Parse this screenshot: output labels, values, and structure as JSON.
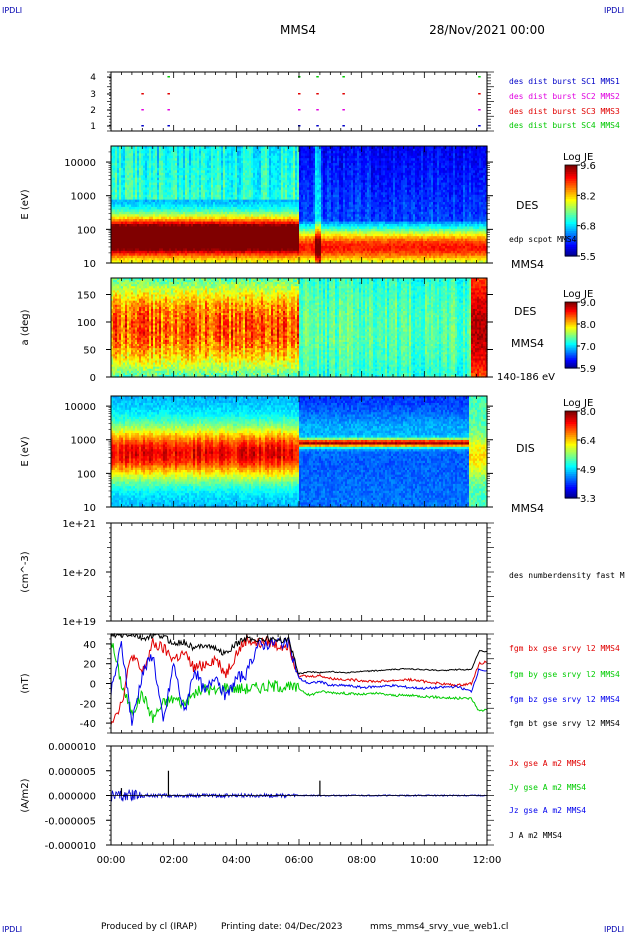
{
  "header": {
    "corner_tl": "IPDLI",
    "corner_tr": "IPDLI",
    "corner_bl": "IPDLI",
    "corner_br": "IPDLI",
    "spacecraft": "MMS4",
    "date": "28/Nov/2021 00:00"
  },
  "footer": {
    "produced_by": "Produced by cl (IRAP)",
    "printing_date": "Printing date: 04/Dec/2023",
    "file_name": "mms_mms4_srvy_vue_web1.cl"
  },
  "colors": {
    "mms1": "#0000c8",
    "mms2": "#e000e0",
    "mms3": "#e00000",
    "mms4": "#00c800",
    "bx": "#e00000",
    "by": "#00cc00",
    "bz": "#0000ee",
    "bt": "#000000"
  },
  "chart_data": [
    {
      "type": "scatter",
      "panel": "burst-availability",
      "ylabel": "",
      "yticks": [
        "1",
        "2",
        "3",
        "4"
      ],
      "xlim": [
        "00:00",
        "12:00"
      ],
      "series": [
        {
          "name": "des dist burst SC1 MMS1",
          "y": 1,
          "x": [
            "01:00",
            "01:50",
            "06:00",
            "06:35",
            "07:25",
            "11:45"
          ]
        },
        {
          "name": "des dist burst SC2 MMS2",
          "y": 2,
          "x": [
            "01:00",
            "01:50",
            "06:00",
            "06:35",
            "07:25",
            "11:45"
          ]
        },
        {
          "name": "des dist burst SC3 MMS3",
          "y": 3,
          "x": [
            "01:00",
            "01:50",
            "06:00",
            "06:35",
            "07:25",
            "11:45"
          ]
        },
        {
          "name": "des dist burst SC4 MMS4",
          "y": 4,
          "x": [
            "01:50",
            "06:00",
            "06:35",
            "07:25",
            "11:45"
          ]
        }
      ]
    },
    {
      "type": "heatmap",
      "panel": "des-energy",
      "ylabel": "E (eV)",
      "yscale": "log",
      "ylim": [
        10,
        30000
      ],
      "yticks": [
        "10",
        "100",
        "1000",
        "10000"
      ],
      "right_labels": [
        "DES",
        "edp scpot MMS4",
        "MMS4"
      ],
      "colorbar": {
        "title": "Log JE",
        "ticks": [
          "9.6",
          "8.2",
          "6.8",
          "5.5"
        ],
        "min": 5.5,
        "max": 9.6
      },
      "peak_energy_ev": [
        {
          "from": "00:00",
          "to": "06:00",
          "value": 60
        },
        {
          "from": "06:00",
          "to": "12:00",
          "value": 30
        }
      ]
    },
    {
      "type": "heatmap",
      "panel": "des-pitch-angle",
      "ylabel": "a (deg)",
      "ylim": [
        0,
        180
      ],
      "yticks": [
        "0",
        "50",
        "100",
        "150"
      ],
      "right_labels": [
        "DES",
        "MMS4",
        "140-186 eV"
      ],
      "colorbar": {
        "title": "Log JE",
        "ticks": [
          "9.0",
          "8.0",
          "7.0",
          "5.9"
        ],
        "min": 5.9,
        "max": 9.0
      }
    },
    {
      "type": "heatmap",
      "panel": "dis-energy",
      "ylabel": "E (eV)",
      "yscale": "log",
      "ylim": [
        10,
        20000
      ],
      "yticks": [
        "10",
        "100",
        "1000",
        "10000"
      ],
      "right_labels": [
        "DIS",
        "MMS4"
      ],
      "colorbar": {
        "title": "Log JE",
        "ticks": [
          "8.0",
          "6.4",
          "4.9",
          "3.3"
        ],
        "min": 3.3,
        "max": 8.0
      },
      "peak_energy_ev": [
        {
          "from": "00:00",
          "to": "06:00",
          "value": 400
        },
        {
          "from": "06:00",
          "to": "11:20",
          "value": 800
        }
      ]
    },
    {
      "type": "line",
      "panel": "density",
      "ylabel": "(cm^-3)",
      "yscale": "log",
      "yticks": [
        "1e+19",
        "1e+20",
        "1e+21"
      ],
      "series": [
        {
          "name": "des numberdensity fast M",
          "values": []
        }
      ]
    },
    {
      "type": "line",
      "panel": "magnetic-field",
      "ylabel": "(nT)",
      "ylim": [
        -50,
        50
      ],
      "yticks": [
        "-40",
        "-20",
        "0",
        "20",
        "40"
      ],
      "x": [
        "00:00",
        "00:20",
        "00:40",
        "01:00",
        "01:20",
        "01:40",
        "02:00",
        "02:20",
        "02:40",
        "03:00",
        "03:20",
        "03:40",
        "04:00",
        "04:20",
        "04:40",
        "05:00",
        "05:20",
        "05:40",
        "06:00",
        "06:20",
        "06:40",
        "07:00",
        "07:30",
        "08:00",
        "08:30",
        "09:00",
        "09:30",
        "10:00",
        "10:30",
        "11:00",
        "11:30",
        "11:45",
        "12:00"
      ],
      "series": [
        {
          "name": "fgm bx gse srvy l2 MMS4",
          "values": [
            -38,
            -20,
            30,
            10,
            40,
            35,
            25,
            30,
            15,
            20,
            25,
            10,
            30,
            45,
            40,
            42,
            38,
            40,
            8,
            7,
            8,
            5,
            4,
            3,
            2,
            3,
            4,
            2,
            0,
            -2,
            0,
            20,
            22
          ]
        },
        {
          "name": "fgm by gse srvy l2 MMS4",
          "values": [
            45,
            0,
            -30,
            -10,
            -35,
            -20,
            -15,
            -20,
            -10,
            -5,
            -8,
            -3,
            -5,
            -5,
            -4,
            -3,
            -2,
            -4,
            -5,
            -12,
            -8,
            -9,
            -10,
            -11,
            -10,
            -12,
            -12,
            -13,
            -14,
            -15,
            -15,
            -28,
            -26
          ]
        },
        {
          "name": "fgm bz gse srvy l2 MMS4",
          "values": [
            -10,
            40,
            -40,
            10,
            30,
            -40,
            20,
            -30,
            15,
            -10,
            10,
            -15,
            5,
            10,
            38,
            40,
            42,
            40,
            5,
            0,
            2,
            -2,
            -2,
            -4,
            -3,
            -2,
            -4,
            -5,
            -4,
            -3,
            -8,
            15,
            12
          ]
        },
        {
          "name": "fgm bt gse srvy l2 MMS4",
          "values": [
            48,
            48,
            50,
            45,
            48,
            48,
            40,
            42,
            35,
            40,
            35,
            30,
            40,
            46,
            44,
            45,
            44,
            44,
            10,
            12,
            11,
            12,
            11,
            12,
            13,
            14,
            15,
            14,
            13,
            14,
            14,
            33,
            32
          ]
        }
      ]
    },
    {
      "type": "line",
      "panel": "current-density",
      "ylabel": "(A/m2)",
      "ylim": [
        -1e-05,
        1e-05
      ],
      "yticks": [
        "-0.000010",
        "-0.000005",
        "0.000000",
        "0.000005",
        "0.000010"
      ],
      "series": [
        {
          "name": "Jx gse A m2 MMS4",
          "values": []
        },
        {
          "name": "Jy gse A m2 MMS4",
          "values": []
        },
        {
          "name": "Jz gse A m2 MMS4",
          "values": []
        },
        {
          "name": "J A m2 MMS4",
          "values": []
        }
      ],
      "spikes": [
        {
          "x": "00:20",
          "value": 1.5e-06
        },
        {
          "x": "01:50",
          "value": 5e-06
        },
        {
          "x": "06:40",
          "value": 3e-06
        }
      ]
    }
  ],
  "xaxis": {
    "ticks": [
      "00:00",
      "02:00",
      "04:00",
      "06:00",
      "08:00",
      "10:00",
      "12:00"
    ]
  }
}
